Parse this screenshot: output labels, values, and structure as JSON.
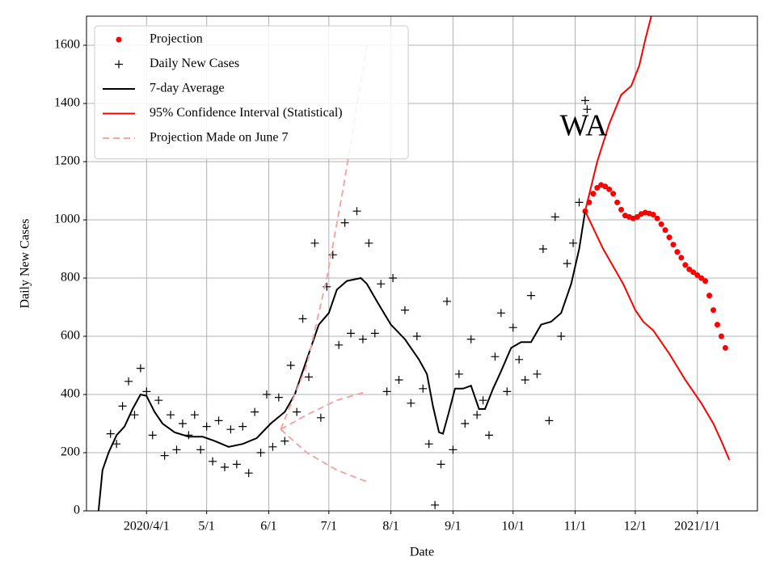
{
  "chart_data": {
    "type": "line",
    "annotation": "WA",
    "xlabel": "Date",
    "ylabel": "Daily New Cases",
    "xlim": [
      "2020/3/2",
      "2021/1/31"
    ],
    "xticks": [
      {
        "value": "2020/4/1",
        "label": "2020/4/1"
      },
      {
        "value": "2020/5/1",
        "label": "5/1"
      },
      {
        "value": "2020/6/1",
        "label": "6/1"
      },
      {
        "value": "2020/7/1",
        "label": "7/1"
      },
      {
        "value": "2020/8/1",
        "label": "8/1"
      },
      {
        "value": "2020/9/1",
        "label": "9/1"
      },
      {
        "value": "2020/10/1",
        "label": "10/1"
      },
      {
        "value": "2020/11/1",
        "label": "11/1"
      },
      {
        "value": "2020/12/1",
        "label": "12/1"
      },
      {
        "value": "2021/1/1",
        "label": "2021/1/1"
      }
    ],
    "ylim": [
      0,
      1700
    ],
    "yticks": [
      0,
      200,
      400,
      600,
      800,
      1000,
      1200,
      1400,
      1600
    ],
    "grid": true,
    "legend": "upper left",
    "series": [
      {
        "name": "Projection",
        "color": "#ff0000",
        "style": "dots",
        "x": [
          "2020/11/6",
          "2020/11/8",
          "2020/11/10",
          "2020/11/12",
          "2020/11/14",
          "2020/11/16",
          "2020/11/18",
          "2020/11/20",
          "2020/11/22",
          "2020/11/24",
          "2020/11/26",
          "2020/11/28",
          "2020/11/30",
          "2020/12/2",
          "2020/12/4",
          "2020/12/6",
          "2020/12/8",
          "2020/12/10",
          "2020/12/12",
          "2020/12/14",
          "2020/12/16",
          "2020/12/18",
          "2020/12/20",
          "2020/12/22",
          "2020/12/24",
          "2020/12/26",
          "2020/12/28",
          "2020/12/30",
          "2021/1/1",
          "2021/1/3",
          "2021/1/5",
          "2021/1/7",
          "2021/1/9",
          "2021/1/11",
          "2021/1/13",
          "2021/1/15"
        ],
        "values": [
          1030,
          1060,
          1090,
          1110,
          1120,
          1115,
          1105,
          1090,
          1060,
          1035,
          1015,
          1010,
          1005,
          1010,
          1020,
          1025,
          1022,
          1018,
          1005,
          985,
          965,
          940,
          915,
          890,
          870,
          845,
          830,
          820,
          810,
          800,
          790,
          740,
          690,
          640,
          600,
          560
        ]
      },
      {
        "name": "Daily New Cases",
        "color": "#000000",
        "style": "plus",
        "x": [
          "2020/3/14",
          "2020/3/17",
          "2020/3/20",
          "2020/3/23",
          "2020/3/26",
          "2020/3/29",
          "2020/4/1",
          "2020/4/4",
          "2020/4/7",
          "2020/4/10",
          "2020/4/13",
          "2020/4/16",
          "2020/4/19",
          "2020/4/22",
          "2020/4/25",
          "2020/4/28",
          "2020/5/1",
          "2020/5/4",
          "2020/5/7",
          "2020/5/10",
          "2020/5/13",
          "2020/5/16",
          "2020/5/19",
          "2020/5/22",
          "2020/5/25",
          "2020/5/28",
          "2020/5/31",
          "2020/6/3",
          "2020/6/6",
          "2020/6/9",
          "2020/6/12",
          "2020/6/15",
          "2020/6/18",
          "2020/6/21",
          "2020/6/24",
          "2020/6/27",
          "2020/6/30",
          "2020/7/3",
          "2020/7/6",
          "2020/7/9",
          "2020/7/12",
          "2020/7/15",
          "2020/7/18",
          "2020/7/21",
          "2020/7/24",
          "2020/7/27",
          "2020/7/30",
          "2020/8/2",
          "2020/8/5",
          "2020/8/8",
          "2020/8/11",
          "2020/8/14",
          "2020/8/17",
          "2020/8/20",
          "2020/8/23",
          "2020/8/26",
          "2020/8/29",
          "2020/9/1",
          "2020/9/4",
          "2020/9/7",
          "2020/9/10",
          "2020/9/13",
          "2020/9/16",
          "2020/9/19",
          "2020/9/22",
          "2020/9/25",
          "2020/9/28",
          "2020/10/1",
          "2020/10/4",
          "2020/10/7",
          "2020/10/10",
          "2020/10/13",
          "2020/10/16",
          "2020/10/19",
          "2020/10/22",
          "2020/10/25",
          "2020/10/28",
          "2020/10/31",
          "2020/11/3",
          "2020/11/6",
          "2020/11/7"
        ],
        "values": [
          265,
          230,
          360,
          445,
          330,
          490,
          410,
          260,
          380,
          190,
          330,
          210,
          300,
          260,
          330,
          210,
          290,
          170,
          310,
          150,
          280,
          160,
          290,
          130,
          340,
          200,
          400,
          220,
          390,
          240,
          500,
          340,
          660,
          460,
          920,
          320,
          770,
          880,
          570,
          990,
          610,
          1030,
          590,
          920,
          610,
          780,
          410,
          800,
          450,
          690,
          370,
          600,
          420,
          230,
          20,
          160,
          720,
          210,
          470,
          300,
          590,
          330,
          380,
          260,
          530,
          680,
          410,
          630,
          520,
          450,
          740,
          470,
          900,
          310,
          1010,
          600,
          850,
          920,
          1060,
          1410,
          1380
        ]
      },
      {
        "name": "7-day Average",
        "color": "#000000",
        "style": "line",
        "x": [
          "2020/3/8",
          "2020/3/10",
          "2020/3/13",
          "2020/3/17",
          "2020/3/21",
          "2020/3/25",
          "2020/3/29",
          "2020/4/1",
          "2020/4/5",
          "2020/4/9",
          "2020/4/15",
          "2020/4/22",
          "2020/4/29",
          "2020/5/5",
          "2020/5/12",
          "2020/5/19",
          "2020/5/26",
          "2020/6/2",
          "2020/6/9",
          "2020/6/14",
          "2020/6/20",
          "2020/6/26",
          "2020/7/1",
          "2020/7/5",
          "2020/7/10",
          "2020/7/17",
          "2020/7/20",
          "2020/7/25",
          "2020/8/1",
          "2020/8/8",
          "2020/8/15",
          "2020/8/19",
          "2020/8/22",
          "2020/8/25",
          "2020/8/27",
          "2020/8/30",
          "2020/9/2",
          "2020/9/6",
          "2020/9/10",
          "2020/9/14",
          "2020/9/17",
          "2020/9/21",
          "2020/9/25",
          "2020/9/30",
          "2020/10/5",
          "2020/10/10",
          "2020/10/15",
          "2020/10/20",
          "2020/10/25",
          "2020/10/30",
          "2020/11/3",
          "2020/11/6"
        ],
        "values": [
          0,
          140,
          200,
          260,
          290,
          350,
          400,
          395,
          340,
          300,
          270,
          255,
          255,
          240,
          220,
          230,
          250,
          300,
          340,
          400,
          520,
          640,
          680,
          760,
          790,
          800,
          780,
          720,
          640,
          590,
          520,
          470,
          360,
          270,
          265,
          340,
          420,
          420,
          430,
          350,
          350,
          420,
          480,
          560,
          580,
          580,
          640,
          650,
          680,
          780,
          900,
          1030
        ]
      },
      {
        "name": "95% Confidence Interval (Statistical)",
        "color": "#ff0000",
        "style": "line",
        "x": [
          "2020/11/6",
          "2020/11/12",
          "2020/11/18",
          "2020/11/24",
          "2020/11/29",
          "2020/12/3",
          "2020/12/6",
          "2020/12/9"
        ],
        "values": [
          1030,
          1200,
          1330,
          1430,
          1460,
          1530,
          1620,
          1700
        ]
      },
      {
        "color": "#ff0000",
        "style": "line",
        "x": [
          "2020/11/6",
          "2020/11/15",
          "2020/11/25",
          "2020/12/1",
          "2020/12/5",
          "2020/12/10",
          "2020/12/18",
          "2020/12/26",
          "2021/1/3",
          "2021/1/9",
          "2021/1/13",
          "2021/1/17"
        ],
        "values": [
          1030,
          900,
          780,
          690,
          650,
          620,
          540,
          450,
          370,
          300,
          240,
          175
        ]
      },
      {
        "name": "Projection Made on June 7",
        "color": "#f4a6a6",
        "style": "dashed",
        "x": [
          "2020/6/7",
          "2020/6/20",
          "2020/7/5",
          "2020/7/20"
        ],
        "values": [
          280,
          330,
          380,
          410
        ]
      },
      {
        "color": "#f4a6a6",
        "style": "dashed",
        "x": [
          "2020/6/7",
          "2020/6/20",
          "2020/6/30",
          "2020/7/8",
          "2020/7/14",
          "2020/7/20"
        ],
        "values": [
          280,
          500,
          800,
          1100,
          1350,
          1600
        ]
      },
      {
        "color": "#f4a6a6",
        "style": "dashed",
        "x": [
          "2020/6/7",
          "2020/6/20",
          "2020/7/5",
          "2020/7/20"
        ],
        "values": [
          280,
          200,
          140,
          100
        ]
      }
    ]
  }
}
